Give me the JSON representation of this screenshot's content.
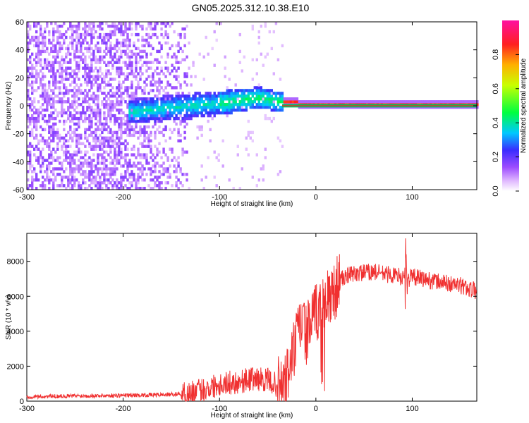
{
  "chart_data": [
    {
      "type": "heatmap",
      "title": "GN05.2025.312.10.38.E10",
      "xlabel": "Height of straight line (km)",
      "ylabel": "Frequency (Hz)",
      "xlim": [
        -300,
        167
      ],
      "ylim": [
        -60,
        60
      ],
      "xticks": [
        -300,
        -200,
        -100,
        0,
        100
      ],
      "xtick_labels": [
        "-300",
        "-200",
        "-100",
        "0",
        "100"
      ],
      "yticks": [
        -60,
        -40,
        -20,
        0,
        20,
        40,
        60
      ],
      "ytick_labels": [
        "-60",
        "-40",
        "-20",
        "0",
        "20",
        "40",
        "60"
      ],
      "grid": false,
      "colorbar": {
        "label": "Normalized spectral amplitude",
        "range": [
          0,
          1
        ],
        "ticks": [
          0,
          0.2,
          0.4,
          0.6,
          0.8
        ],
        "tick_labels": [
          "0.0",
          "0.2",
          "0.4",
          "0.6",
          "0.8"
        ],
        "colormap": "rainbow (white-violet-blue-cyan-green-yellow-red-magenta)"
      },
      "description_regions": [
        {
          "x_range": [
            -300,
            -135
          ],
          "y_range": [
            -60,
            60
          ],
          "amplitude": 0.1
        },
        {
          "x_range": [
            -190,
            -40
          ],
          "y_range": [
            -8,
            12
          ],
          "amplitude": 0.3
        },
        {
          "x_range": [
            -40,
            167
          ],
          "y_range": [
            -1,
            1
          ],
          "amplitude": 0.85
        }
      ],
      "ridge": {
        "x": [
          -190,
          -160,
          -130,
          -100,
          -80,
          -60,
          -40,
          -20,
          0,
          167
        ],
        "y": [
          -5,
          -3,
          -1,
          1,
          3,
          5,
          2,
          1,
          0,
          0
        ]
      }
    },
    {
      "type": "line",
      "xlabel": "Height of straight line (km)",
      "ylabel": "SNR (10 * v/v)",
      "xlim": [
        -300,
        167
      ],
      "ylim": [
        0,
        9600
      ],
      "xticks": [
        -300,
        -200,
        -100,
        0,
        100
      ],
      "xtick_labels": [
        "-300",
        "-200",
        "-100",
        "0",
        "100"
      ],
      "yticks": [
        0,
        2000,
        4000,
        6000,
        8000
      ],
      "ytick_labels": [
        "0",
        "2000",
        "4000",
        "6000",
        "8000"
      ],
      "grid": false,
      "color": "#f03030",
      "series": [
        {
          "x": [
            -300,
            -250,
            -200,
            -150,
            -130,
            -115,
            -100,
            -80,
            -65,
            -50,
            -40,
            -35,
            -30,
            -25,
            -20,
            -15,
            -10,
            -5,
            0,
            10,
            20,
            25,
            30,
            40,
            60,
            80,
            92,
            93,
            95,
            100,
            110,
            130,
            150,
            167
          ],
          "values": [
            250,
            300,
            330,
            380,
            450,
            700,
            1000,
            1100,
            1300,
            1200,
            900,
            700,
            1300,
            2500,
            3500,
            4600,
            3800,
            4400,
            5000,
            5800,
            6400,
            6900,
            7100,
            7300,
            7400,
            7200,
            7100,
            8600,
            7000,
            7100,
            7000,
            6800,
            6600,
            6300
          ]
        }
      ]
    }
  ]
}
